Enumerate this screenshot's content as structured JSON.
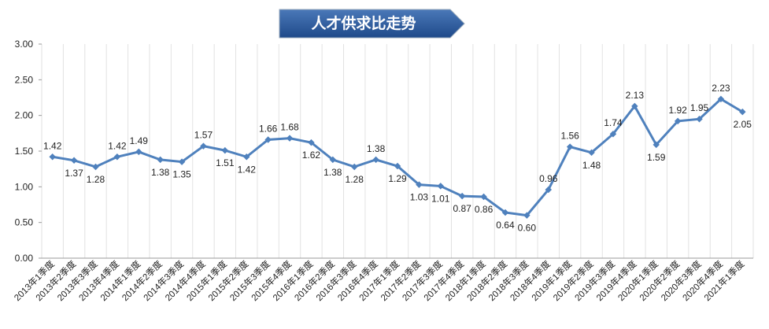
{
  "chart_data": {
    "type": "line",
    "title": "人才供求比走势",
    "categories": [
      "2013年1季度",
      "2013年2季度",
      "2013年3季度",
      "2013年4季度",
      "2014年1季度",
      "2014年2季度",
      "2014年3季度",
      "2014年4季度",
      "2015年1季度",
      "2015年2季度",
      "2015年3季度",
      "2015年4季度",
      "2016年1季度",
      "2016年2季度",
      "2016年3季度",
      "2016年4季度",
      "2017年1季度",
      "2017年2季度",
      "2017年3季度",
      "2017年4季度",
      "2018年1季度",
      "2018年2季度",
      "2018年3季度",
      "2018年4季度",
      "2019年1季度",
      "2019年2季度",
      "2019年3季度",
      "2019年4季度",
      "2020年1季度",
      "2020年2季度",
      "2020年3季度",
      "2020年4季度",
      "2021年1季度"
    ],
    "values": [
      1.42,
      1.37,
      1.28,
      1.42,
      1.49,
      1.38,
      1.35,
      1.57,
      1.51,
      1.42,
      1.66,
      1.68,
      1.62,
      1.38,
      1.28,
      1.38,
      1.29,
      1.03,
      1.01,
      0.87,
      0.86,
      0.64,
      0.6,
      0.96,
      1.56,
      1.48,
      1.74,
      2.13,
      1.59,
      1.92,
      1.95,
      2.23,
      2.05
    ],
    "value_labels": [
      "1.42",
      "1.37",
      "1.28",
      "1.42",
      "1.49",
      "1.38",
      "1.35",
      "1.57",
      "1.51",
      "1.42",
      "1.66",
      "1.68",
      "1.62",
      "1.38",
      "1.28",
      "1.38",
      "1.29",
      "1.03",
      "1.01",
      "0.87",
      "0.86",
      "0.64",
      "0.60",
      "0.96",
      "1.56",
      "1.48",
      "1.74",
      "2.13",
      "1.59",
      "1.92",
      "1.95",
      "2.23",
      "2.05"
    ],
    "color": "#4f81bd",
    "ylim": [
      0,
      3
    ],
    "yticks": [
      {
        "value": 0,
        "label": "0.00"
      },
      {
        "value": 0.5,
        "label": "0.50"
      },
      {
        "value": 1,
        "label": "1.00"
      },
      {
        "value": 1.5,
        "label": "1.50"
      },
      {
        "value": 2,
        "label": "2.00"
      },
      {
        "value": 2.5,
        "label": "2.50"
      },
      {
        "value": 3,
        "label": "3.00"
      }
    ]
  }
}
